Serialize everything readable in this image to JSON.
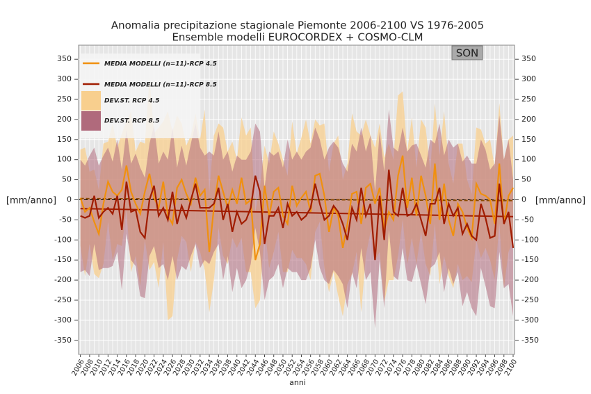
{
  "chart_data": {
    "type": "line",
    "title": "Anomalia precipitazione  stagionale Piemonte  2006-2100 VS 1976-2005",
    "subtitle": "Ensemble modelli EUROCORDEX + COSMO-CLM",
    "season": "SON",
    "xlabel": "anni",
    "ylabel": "[mm/anno]",
    "xlim": [
      2005.6,
      2100.3
    ],
    "ylim": [
      -385,
      385
    ],
    "xticks": [
      2006,
      2008,
      2010,
      2012,
      2014,
      2016,
      2018,
      2020,
      2022,
      2024,
      2026,
      2028,
      2030,
      2032,
      2034,
      2036,
      2038,
      2040,
      2042,
      2044,
      2046,
      2048,
      2050,
      2052,
      2054,
      2056,
      2058,
      2060,
      2062,
      2064,
      2066,
      2068,
      2070,
      2072,
      2074,
      2076,
      2078,
      2080,
      2082,
      2084,
      2086,
      2088,
      2090,
      2092,
      2094,
      2096,
      2098,
      2100
    ],
    "yticks": [
      -350,
      -300,
      -250,
      -200,
      -150,
      -100,
      -50,
      0,
      50,
      100,
      150,
      200,
      250,
      300,
      350
    ],
    "grid": true,
    "x": [
      2006,
      2007,
      2008,
      2009,
      2010,
      2011,
      2012,
      2013,
      2014,
      2015,
      2016,
      2017,
      2018,
      2019,
      2020,
      2021,
      2022,
      2023,
      2024,
      2025,
      2026,
      2027,
      2028,
      2029,
      2030,
      2031,
      2032,
      2033,
      2034,
      2035,
      2036,
      2037,
      2038,
      2039,
      2040,
      2041,
      2042,
      2043,
      2044,
      2045,
      2046,
      2047,
      2048,
      2049,
      2050,
      2051,
      2052,
      2053,
      2054,
      2055,
      2056,
      2057,
      2058,
      2059,
      2060,
      2061,
      2062,
      2063,
      2064,
      2065,
      2066,
      2067,
      2068,
      2069,
      2070,
      2071,
      2072,
      2073,
      2074,
      2075,
      2076,
      2077,
      2078,
      2079,
      2080,
      2081,
      2082,
      2083,
      2084,
      2085,
      2086,
      2087,
      2088,
      2089,
      2090,
      2091,
      2092,
      2093,
      2094,
      2095,
      2096,
      2097,
      2098,
      2099,
      2100
    ],
    "series": [
      {
        "name": "MEDIA MODELLI (n=11)-RCP 4.5",
        "color": "#f0900f",
        "values": [
          5,
          -30,
          -20,
          -55,
          -85,
          -10,
          45,
          20,
          10,
          25,
          85,
          20,
          -10,
          -35,
          20,
          65,
          5,
          -20,
          45,
          -40,
          -60,
          30,
          50,
          15,
          -10,
          55,
          10,
          25,
          -130,
          -20,
          60,
          20,
          -20,
          25,
          -10,
          55,
          -10,
          0,
          -150,
          -110,
          35,
          -40,
          20,
          30,
          -40,
          -60,
          35,
          -15,
          5,
          20,
          -30,
          60,
          65,
          10,
          -80,
          -20,
          -40,
          -120,
          -60,
          15,
          20,
          -60,
          30,
          40,
          -10,
          30,
          -75,
          -30,
          -50,
          60,
          110,
          -20,
          55,
          -40,
          60,
          10,
          -60,
          90,
          -50,
          40,
          -50,
          -90,
          -10,
          -30,
          -70,
          -95,
          40,
          15,
          10,
          0,
          -60,
          90,
          -60,
          10,
          30
        ],
        "trend": {
          "color": "#8a4a00",
          "x": [
            2006,
            2100
          ],
          "values": [
            3,
            -2
          ]
        },
        "band": {
          "name": "DEV.ST. RCP 4.5",
          "color": "#f8cf8e",
          "dev": [
            120,
            160,
            90,
            130,
            110,
            150,
            100,
            170,
            120,
            140,
            110,
            200,
            130,
            180,
            120,
            240,
            160,
            200,
            150,
            260,
            230,
            180,
            140,
            120,
            170,
            160,
            140,
            200,
            150,
            180,
            130,
            160,
            140,
            120,
            110,
            150,
            170,
            180,
            120,
            140,
            100,
            130,
            150,
            110,
            140,
            120,
            160,
            130,
            150,
            180,
            170,
            140,
            120,
            180,
            150,
            160,
            200,
            170,
            150,
            200,
            150,
            220,
            170,
            120,
            140,
            160,
            180,
            170,
            150,
            200,
            160,
            140,
            150,
            120,
            140,
            170,
            130,
            150,
            160,
            180,
            140,
            130,
            150,
            170,
            120,
            110,
            140,
            160,
            130,
            150,
            140,
            150,
            160,
            140,
            130
          ]
        }
      },
      {
        "name": "MEDIA MODELLI (n=11)-RCP 8.5",
        "color": "#a01c00",
        "values": [
          -40,
          -45,
          -40,
          10,
          -45,
          -30,
          -20,
          -35,
          10,
          -75,
          45,
          -30,
          -25,
          -80,
          -95,
          0,
          35,
          -40,
          -20,
          -50,
          20,
          -60,
          -15,
          -45,
          0,
          40,
          -20,
          -20,
          -20,
          -10,
          30,
          -50,
          -10,
          -80,
          -30,
          -60,
          -50,
          -20,
          60,
          20,
          -110,
          -40,
          -40,
          -20,
          -70,
          -10,
          -40,
          -30,
          -50,
          -40,
          -20,
          40,
          -10,
          -50,
          -40,
          -15,
          -30,
          -60,
          -100,
          -20,
          -50,
          30,
          -40,
          -10,
          -150,
          10,
          -100,
          75,
          -30,
          -40,
          30,
          -40,
          -35,
          -10,
          -50,
          -90,
          -10,
          -10,
          30,
          -60,
          -10,
          -40,
          -20,
          -85,
          -60,
          -90,
          -100,
          -10,
          -45,
          -95,
          -90,
          40,
          -60,
          -30,
          -120
        ],
        "trend": {
          "color": "#a01c00",
          "x": [
            2006,
            2100
          ],
          "values": [
            -22,
            -42
          ]
        },
        "band": {
          "name": "DEV.ST. RCP 8.5",
          "color": "#b06a7c",
          "dev": [
            140,
            130,
            150,
            120,
            130,
            140,
            150,
            130,
            140,
            150,
            130,
            120,
            140,
            160,
            150,
            140,
            150,
            130,
            140,
            150,
            160,
            140,
            150,
            130,
            140,
            150,
            150,
            130,
            140,
            120,
            140,
            150,
            130,
            150,
            140,
            160,
            150,
            140,
            130,
            150,
            140,
            160,
            150,
            140,
            150,
            160,
            140,
            150,
            150,
            160,
            150,
            140,
            160,
            150,
            170,
            160,
            160,
            150,
            170,
            160,
            170,
            150,
            160,
            170,
            170,
            160,
            170,
            150,
            160,
            160,
            150,
            160,
            170,
            150,
            160,
            170,
            160,
            150,
            160,
            170,
            160,
            170,
            160,
            180,
            170,
            180,
            190,
            160,
            170,
            170,
            180,
            170,
            160,
            180,
            170
          ]
        }
      }
    ]
  }
}
